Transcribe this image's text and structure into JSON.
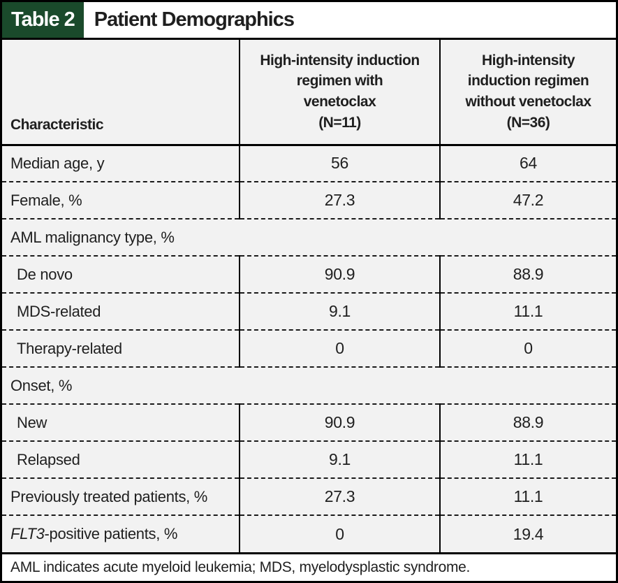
{
  "title_bar": {
    "tag": "Table 2",
    "title": "Patient Demographics"
  },
  "columns": {
    "characteristic": "Characteristic",
    "col2": "High-intensity induction\nregimen with\nvenetoclax\n(N=11)",
    "col3": "High-intensity\ninduction regimen\nwithout venetoclax\n(N=36)"
  },
  "rows": [
    {
      "label": "Median age, y",
      "v1": "56",
      "v2": "64"
    },
    {
      "label": "Female, %",
      "v1": "27.3",
      "v2": "47.2"
    },
    {
      "label": "AML malignancy type, %"
    },
    {
      "label": "De novo",
      "v1": "90.9",
      "v2": "88.9"
    },
    {
      "label": "MDS-related",
      "v1": "9.1",
      "v2": "11.1"
    },
    {
      "label": "Therapy-related",
      "v1": "0",
      "v2": "0"
    },
    {
      "label": "Onset, %"
    },
    {
      "label": "New",
      "v1": "90.9",
      "v2": "88.9"
    },
    {
      "label": "Relapsed",
      "v1": "9.1",
      "v2": "11.1"
    },
    {
      "label": "Previously treated patients, %",
      "v1": "27.3",
      "v2": "11.1"
    },
    {
      "label_italic": "FLT3",
      "label_rest": "-positive patients, %",
      "v1": "0",
      "v2": "19.4"
    }
  ],
  "footnote": "AML indicates acute myeloid leukemia; MDS, myelodysplastic syndrome.",
  "colors": {
    "table_tag_green": "#1a4a2b",
    "row_background": "#f2f2f2",
    "border_black": "#000000",
    "text": "#1f1f1f"
  }
}
